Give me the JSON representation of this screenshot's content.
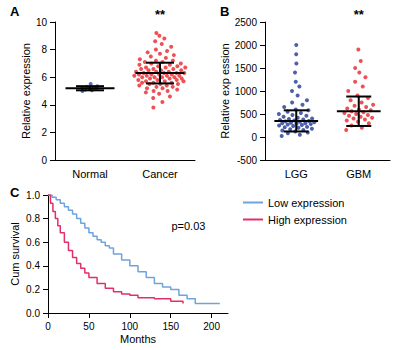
{
  "chart_data": [
    {
      "type": "dot",
      "title": "A",
      "ylabel": "Relative expression",
      "categories": [
        "Normal",
        "Cancer"
      ],
      "values": [
        [
          5.0,
          5.05,
          5.1,
          5.15,
          5.2,
          5.2,
          5.25,
          5.3,
          5.35,
          5.5
        ],
        [
          3.8,
          4.2,
          4.5,
          4.6,
          4.8,
          4.9,
          5.0,
          5.0,
          5.1,
          5.2,
          5.2,
          5.3,
          5.3,
          5.4,
          5.4,
          5.5,
          5.5,
          5.5,
          5.6,
          5.6,
          5.6,
          5.7,
          5.7,
          5.7,
          5.8,
          5.8,
          5.8,
          5.9,
          5.9,
          5.9,
          6.0,
          6.0,
          6.0,
          6.0,
          6.1,
          6.1,
          6.1,
          6.1,
          6.2,
          6.2,
          6.2,
          6.2,
          6.3,
          6.3,
          6.3,
          6.3,
          6.4,
          6.4,
          6.4,
          6.5,
          6.5,
          6.5,
          6.6,
          6.6,
          6.6,
          6.7,
          6.7,
          6.7,
          6.8,
          6.8,
          6.9,
          6.9,
          7.0,
          7.0,
          7.1,
          7.1,
          7.2,
          7.2,
          7.3,
          7.4,
          7.5,
          7.6,
          7.7,
          7.8,
          7.9,
          8.0,
          8.2,
          8.4,
          8.6,
          8.8,
          9.0,
          9.2
        ]
      ],
      "means": [
        5.2,
        6.3
      ],
      "sd": [
        0.15,
        0.75
      ],
      "colors": [
        "#2a4fa8",
        "#e8262c"
      ],
      "ylim": [
        0,
        10
      ],
      "yticks": [
        0,
        2,
        4,
        6,
        8,
        10
      ],
      "grid": false,
      "annotations": [
        {
          "text": "**",
          "category": "Cancer"
        }
      ]
    },
    {
      "type": "dot",
      "title": "B",
      "ylabel": "Relative exp ession",
      "categories": [
        "LGG",
        "GBM"
      ],
      "values": [
        [
          20,
          50,
          80,
          100,
          120,
          140,
          150,
          170,
          180,
          200,
          210,
          220,
          240,
          250,
          260,
          270,
          280,
          290,
          300,
          300,
          310,
          320,
          330,
          340,
          350,
          360,
          370,
          380,
          390,
          400,
          420,
          440,
          460,
          480,
          500,
          520,
          550,
          580,
          600,
          650,
          700,
          750,
          800,
          900,
          1000,
          1100,
          1200,
          1400,
          1600,
          1800,
          2000
        ],
        [
          150,
          200,
          250,
          300,
          330,
          360,
          380,
          400,
          420,
          440,
          460,
          480,
          500,
          520,
          540,
          560,
          580,
          600,
          620,
          650,
          680,
          700,
          750,
          800,
          850,
          900,
          1000,
          1100,
          1200,
          1300,
          1400,
          1500,
          1650,
          1900
        ]
      ],
      "means": [
        350,
        560
      ],
      "sd": [
        230,
        320
      ],
      "colors": [
        "#1f3a93",
        "#e8262c"
      ],
      "ylim": [
        -500,
        2500
      ],
      "yticks": [
        -500,
        0,
        500,
        1000,
        1500,
        2000,
        2500
      ],
      "grid": false,
      "annotations": [
        {
          "text": "**",
          "category": "GBM"
        }
      ]
    },
    {
      "type": "line",
      "title": "C",
      "xlabel": "Months",
      "ylabel": "Cum survival",
      "series": [
        {
          "name": "Low expression",
          "color": "#6fa3dc",
          "line_style": "steps",
          "x": [
            0,
            5,
            10,
            15,
            20,
            25,
            30,
            35,
            40,
            45,
            50,
            55,
            60,
            65,
            70,
            75,
            80,
            90,
            100,
            110,
            120,
            130,
            140,
            150,
            160,
            170,
            180,
            210
          ],
          "values": [
            1.0,
            0.98,
            0.96,
            0.93,
            0.9,
            0.87,
            0.84,
            0.8,
            0.76,
            0.72,
            0.68,
            0.65,
            0.62,
            0.6,
            0.57,
            0.55,
            0.5,
            0.45,
            0.4,
            0.35,
            0.3,
            0.25,
            0.22,
            0.2,
            0.15,
            0.12,
            0.08,
            0.08
          ]
        },
        {
          "name": "High expression",
          "color": "#e0306a",
          "line_style": "steps",
          "x": [
            0,
            3,
            6,
            9,
            12,
            15,
            20,
            25,
            30,
            35,
            40,
            45,
            50,
            60,
            70,
            80,
            90,
            100,
            110,
            130,
            150,
            165
          ],
          "values": [
            1.0,
            0.93,
            0.86,
            0.8,
            0.74,
            0.68,
            0.6,
            0.53,
            0.47,
            0.42,
            0.38,
            0.34,
            0.3,
            0.25,
            0.21,
            0.18,
            0.16,
            0.15,
            0.13,
            0.12,
            0.1,
            0.08
          ]
        }
      ],
      "xlim": [
        0,
        220
      ],
      "xticks": [
        0,
        50,
        100,
        150,
        200
      ],
      "ylim": [
        0,
        1
      ],
      "yticks": [
        {
          "value": 0,
          "label": "0.0"
        },
        0.2,
        0.4,
        0.6,
        0.8,
        {
          "value": 1,
          "label": "1.0"
        }
      ],
      "grid": false,
      "legend": "right",
      "annotations": [
        {
          "text": "p=0.03"
        }
      ]
    }
  ]
}
